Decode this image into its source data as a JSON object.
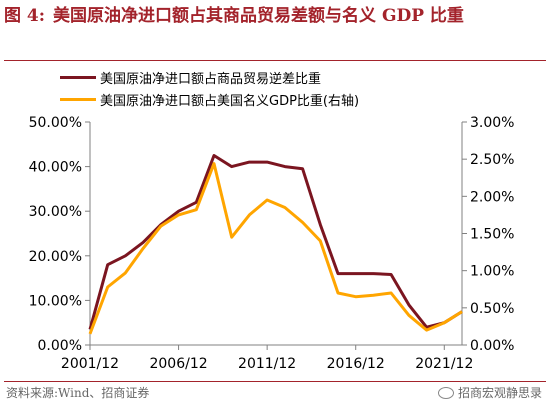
{
  "figure": {
    "prefix": "图 4:",
    "title": "美国原油净进口额占其商品贸易差额与名义 GDP 比重"
  },
  "source": "资料来源:Wind、招商证券",
  "watermark": "招商宏观静思录",
  "colors": {
    "accent": "#a3232b",
    "series_left": "#7b1520",
    "series_right": "#ffa500"
  },
  "chart_data": {
    "type": "line",
    "x": [
      2001,
      2002,
      2003,
      2004,
      2005,
      2006,
      2007,
      2008,
      2009,
      2010,
      2011,
      2012,
      2013,
      2014,
      2015,
      2016,
      2017,
      2018,
      2019,
      2020,
      2021,
      2022
    ],
    "xticks": [
      2001,
      2006,
      2011,
      2016,
      2021
    ],
    "xtick_labels": [
      "2001/12",
      "2006/12",
      "2011/12",
      "2016/12",
      "2021/12"
    ],
    "xlim": [
      2001,
      2022
    ],
    "ylim_left": [
      0,
      50
    ],
    "ylim_right": [
      0,
      3
    ],
    "yticks_left": [
      "0.00%",
      "10.00%",
      "20.00%",
      "30.00%",
      "40.00%",
      "50.00%"
    ],
    "yticks_right": [
      "0.00%",
      "0.50%",
      "1.00%",
      "1.50%",
      "2.00%",
      "2.50%",
      "3.00%"
    ],
    "grid": false,
    "legend_position": "top-left",
    "series": [
      {
        "name": "美国原油净进口额占商品贸易逆差比重",
        "axis": "left",
        "values": [
          3.5,
          18,
          20,
          23,
          27,
          30,
          32,
          42.5,
          40,
          41,
          41,
          40,
          39.5,
          27,
          16,
          16,
          16,
          15.8,
          9,
          4,
          5,
          7.5
        ]
      },
      {
        "name": "美国原油净进口额占美国名义GDP比重(右轴)",
        "axis": "right",
        "values": [
          0.15,
          0.78,
          0.97,
          1.3,
          1.6,
          1.75,
          1.82,
          2.44,
          1.45,
          1.75,
          1.95,
          1.85,
          1.65,
          1.4,
          0.7,
          0.65,
          0.67,
          0.7,
          0.4,
          0.2,
          0.3,
          0.45
        ]
      }
    ]
  }
}
